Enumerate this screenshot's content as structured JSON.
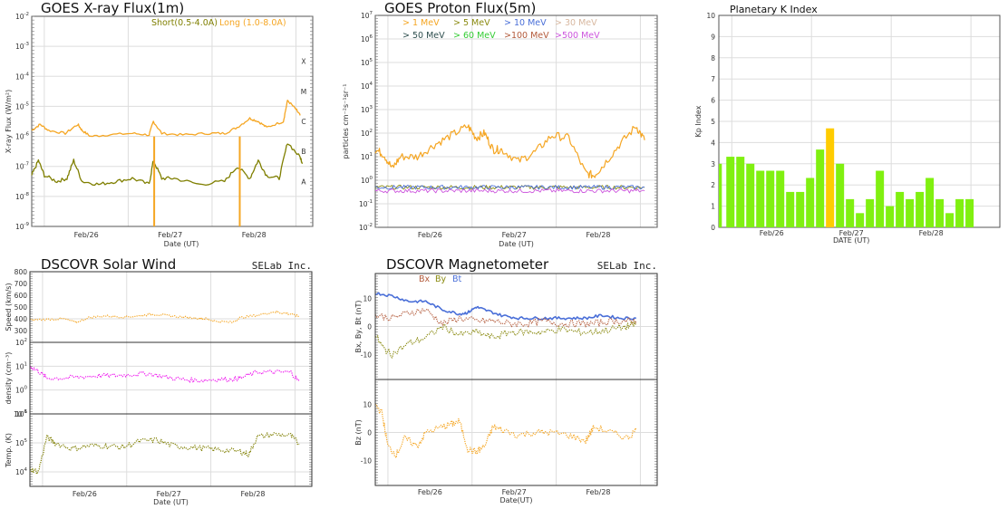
{
  "colors": {
    "orange": "#f5a623",
    "olive": "#7f7f00",
    "magenta": "#ee11ee",
    "blue": "#4a6fd8",
    "brown": "#b35a3a",
    "green_bar": "#80f010",
    "yellow_bar": "#ffcc00",
    "grid": "#dddddd"
  },
  "chart_data": [
    {
      "id": "xray",
      "type": "line",
      "title": "GOES X-ray Flux(1m)",
      "xlabel": "Date (UT)",
      "ylabel": "X-ray Flux (W/m²)",
      "yscale": "log",
      "ylim_exp": [
        -9,
        -2
      ],
      "ytick_labels": [
        "10-9",
        "10-8",
        "10-7",
        "10-6",
        "10-5",
        "10-4",
        "10-3",
        "10-2"
      ],
      "class_labels": [
        "A",
        "B",
        "C",
        "M",
        "X"
      ],
      "xtick_labels": [
        "Feb/26",
        "Feb/27",
        "Feb/28"
      ],
      "xlim_days": [
        0,
        3.35
      ],
      "legend": [
        {
          "name": "Short(0.5-4.0A)",
          "color": "#7f7f00"
        },
        {
          "name": "Long (1.0-8.0A)",
          "color": "#f5a623"
        }
      ],
      "series": [
        {
          "name": "Long (1.0-8.0A)",
          "color": "#f5a623",
          "x": [
            0,
            0.1,
            0.2,
            0.4,
            0.55,
            0.6,
            0.7,
            0.9,
            1.2,
            1.4,
            1.45,
            1.55,
            1.8,
            2.1,
            2.3,
            2.45,
            2.6,
            2.7,
            2.8,
            3.0,
            3.05,
            3.15,
            3.2
          ],
          "log_y": [
            -5.8,
            -5.6,
            -5.8,
            -5.9,
            -5.6,
            -5.8,
            -6.0,
            -5.95,
            -5.9,
            -5.95,
            -5.5,
            -5.9,
            -5.95,
            -5.9,
            -5.9,
            -5.7,
            -5.4,
            -5.5,
            -5.7,
            -5.5,
            -4.8,
            -5.1,
            -5.3
          ]
        },
        {
          "name": "Short(0.5-4.0A)",
          "color": "#7f7f00",
          "x": [
            0,
            0.08,
            0.15,
            0.3,
            0.42,
            0.5,
            0.6,
            0.8,
            1.0,
            1.2,
            1.4,
            1.45,
            1.55,
            1.7,
            2.0,
            2.3,
            2.45,
            2.6,
            2.7,
            2.8,
            2.95,
            3.05,
            3.2,
            3.23
          ],
          "log_y": [
            -7.3,
            -6.8,
            -7.3,
            -7.5,
            -7.4,
            -6.8,
            -7.5,
            -7.6,
            -7.5,
            -7.4,
            -7.6,
            -6.8,
            -7.4,
            -7.4,
            -7.6,
            -7.5,
            -7.0,
            -7.4,
            -6.8,
            -7.3,
            -7.4,
            -6.2,
            -6.7,
            -6.9
          ]
        }
      ],
      "dropouts_x": [
        1.46,
        2.48
      ]
    },
    {
      "id": "proton",
      "type": "line",
      "title": "GOES Proton Flux(5m)",
      "xlabel": "Date (UT)",
      "ylabel": "particles cm⁻²s⁻¹sr⁻¹",
      "yscale": "log",
      "ylim_exp": [
        -2,
        7
      ],
      "ytick_labels": [
        "10-2",
        "10-1",
        "100",
        "101",
        "102",
        "103",
        "104",
        "105",
        "106",
        "107"
      ],
      "xtick_labels": [
        "Feb/26",
        "Feb/27",
        "Feb/28"
      ],
      "xlim_days": [
        0,
        3.35
      ],
      "legend": [
        {
          "name": "> 1 MeV",
          "color": "#f5a623"
        },
        {
          "name": "> 5 MeV",
          "color": "#8a8a10"
        },
        {
          "name": "> 10 MeV",
          "color": "#4a6fd8"
        },
        {
          "name": "> 30 MeV",
          "color": "#d8b8a0"
        },
        {
          "name": "> 50 MeV",
          "color": "#2f4f4f"
        },
        {
          "name": "> 60 MeV",
          "color": "#33cc33"
        },
        {
          "name": ">100 MeV",
          "color": "#b35a3a"
        },
        {
          "name": ">500 MeV",
          "color": "#cc55dd"
        }
      ],
      "series": [
        {
          "name": "> 1 MeV",
          "color": "#f5a623",
          "x": [
            0,
            0.1,
            0.2,
            0.3,
            0.5,
            0.7,
            0.9,
            1.1,
            1.2,
            1.3,
            1.4,
            1.5,
            1.7,
            1.9,
            2.1,
            2.3,
            2.5,
            2.6,
            2.7,
            2.9,
            3.1,
            3.2
          ],
          "log_y": [
            1.3,
            1.1,
            0.5,
            1.0,
            1.0,
            1.5,
            1.9,
            2.3,
            1.8,
            2.0,
            1.3,
            1.3,
            0.8,
            1.2,
            1.9,
            1.8,
            0.3,
            0.2,
            0.6,
            1.5,
            2.3,
            1.7
          ]
        },
        {
          "name": "> 5 MeV",
          "color": "#8a8a10",
          "x": [
            0,
            3.2
          ],
          "log_y": [
            -0.3,
            -0.3
          ]
        },
        {
          "name": "> 10 MeV",
          "color": "#4a6fd8",
          "x": [
            0,
            3.2
          ],
          "log_y": [
            -0.3,
            -0.3
          ]
        },
        {
          "name": ">500 MeV",
          "color": "#cc55dd",
          "x": [
            0,
            3.2
          ],
          "log_y": [
            -0.45,
            -0.45
          ]
        }
      ]
    },
    {
      "id": "kp",
      "type": "bar",
      "title": "Planetary K Index",
      "xlabel": "DATE (UT)",
      "ylabel": "Kp Index",
      "ylim": [
        0,
        10
      ],
      "ytick_labels": [
        "0",
        "1",
        "2",
        "3",
        "4",
        "5",
        "6",
        "7",
        "8",
        "9",
        "10"
      ],
      "xtick_labels": [
        "Feb/26",
        "Feb/27",
        "Feb/28"
      ],
      "values": [
        3.0,
        3.33,
        3.33,
        3.0,
        2.67,
        2.67,
        2.67,
        1.67,
        1.67,
        2.33,
        3.67,
        4.67,
        3.0,
        1.33,
        0.67,
        1.33,
        2.67,
        1.0,
        1.67,
        1.33,
        1.67,
        2.33,
        1.33,
        0.67,
        1.33,
        1.33
      ],
      "highlight_threshold": 4
    },
    {
      "id": "solarwind",
      "type": "scatter",
      "title": "DSCOVR Solar Wind",
      "credit": "SELab Inc.",
      "xlabel": "Date (UT)",
      "xtick_labels": [
        "Feb/26",
        "Feb/27",
        "Feb/28"
      ],
      "panels": [
        {
          "ylabel": "Speed (km/s)",
          "yscale": "linear",
          "ylim": [
            200,
            800
          ],
          "ytick_labels": [
            "300",
            "400",
            "500",
            "600",
            "700",
            "800"
          ],
          "color": "#f5a623",
          "x": [
            0,
            0.2,
            0.4,
            0.55,
            0.7,
            0.9,
            1.1,
            1.3,
            1.45,
            1.6,
            1.8,
            2.0,
            2.1,
            2.2,
            2.4,
            2.5,
            2.7,
            2.9,
            3.0,
            3.1,
            3.2
          ],
          "y": [
            390,
            395,
            400,
            370,
            410,
            425,
            415,
            425,
            440,
            430,
            415,
            405,
            400,
            380,
            370,
            410,
            430,
            460,
            450,
            440,
            420
          ]
        },
        {
          "ylabel": "density (cm⁻³)",
          "yscale": "log",
          "ylim_exp": [
            -1,
            2
          ],
          "ytick_labels": [
            "10-1",
            "100",
            "101",
            "102"
          ],
          "color": "#ee11ee",
          "x": [
            0,
            0.1,
            0.2,
            0.4,
            0.6,
            0.8,
            1.0,
            1.2,
            1.4,
            1.6,
            1.8,
            2.0,
            2.2,
            2.4,
            2.5,
            2.7,
            2.9,
            3.1,
            3.2
          ],
          "log_y": [
            1.0,
            0.8,
            0.5,
            0.5,
            0.55,
            0.6,
            0.6,
            0.65,
            0.7,
            0.55,
            0.45,
            0.4,
            0.45,
            0.45,
            0.5,
            0.75,
            0.75,
            0.75,
            0.35
          ]
        },
        {
          "ylabel": "Temp. (K)",
          "yscale": "log",
          "ylim_exp": [
            3.5,
            6
          ],
          "ytick_labels": [
            "104",
            "105",
            "106"
          ],
          "color": "#7f7f00",
          "x": [
            0,
            0.1,
            0.2,
            0.3,
            0.5,
            0.7,
            0.9,
            1.1,
            1.3,
            1.5,
            1.7,
            1.9,
            2.1,
            2.3,
            2.5,
            2.6,
            2.7,
            2.9,
            3.1,
            3.2
          ],
          "log_y": [
            4.1,
            4.0,
            5.2,
            5.0,
            4.8,
            4.9,
            4.9,
            4.85,
            5.05,
            5.1,
            4.9,
            4.85,
            4.8,
            4.75,
            4.7,
            4.6,
            5.2,
            5.3,
            5.25,
            4.95
          ]
        }
      ]
    },
    {
      "id": "mag",
      "type": "scatter",
      "title": "DSCOVR Magnetometer",
      "credit": "SELab Inc.",
      "xlabel": "Date(UT)",
      "xtick_labels": [
        "Feb/26",
        "Feb/27",
        "Feb/28"
      ],
      "legend": [
        {
          "name": "Bx",
          "color": "#b35a3a"
        },
        {
          "name": "By",
          "color": "#8a8a10"
        },
        {
          "name": "Bt",
          "color": "#4a6fd8"
        }
      ],
      "panels": [
        {
          "ylabel": "Bx, By, Bt (nT)",
          "ylim": [
            -19,
            19
          ],
          "ytick_labels": [
            "-10",
            "0",
            "10"
          ],
          "series": [
            {
              "name": "Bt",
              "color": "#4a6fd8",
              "x": [
                0,
                0.2,
                0.4,
                0.6,
                0.8,
                1.0,
                1.1,
                1.2,
                1.3,
                1.5,
                1.7,
                1.9,
                2.1,
                2.3,
                2.5,
                2.7,
                2.9,
                3.1
              ],
              "y": [
                12,
                11,
                9,
                9,
                6,
                4.5,
                5,
                7,
                6,
                4,
                3,
                3,
                3,
                3,
                3,
                4,
                3,
                3
              ]
            },
            {
              "name": "Bx",
              "color": "#b35a3a",
              "x": [
                0,
                0.2,
                0.4,
                0.6,
                0.8,
                1.0,
                1.2,
                1.4,
                1.6,
                1.8,
                2.0,
                2.2,
                2.4,
                2.6,
                2.8,
                3.0,
                3.1
              ],
              "y": [
                4,
                3,
                5,
                6,
                1,
                3,
                2,
                2,
                1,
                1,
                2,
                1,
                1,
                1,
                2,
                2,
                2
              ]
            },
            {
              "name": "By",
              "color": "#8a8a10",
              "x": [
                0,
                0.1,
                0.2,
                0.4,
                0.6,
                0.8,
                1.0,
                1.2,
                1.4,
                1.6,
                1.8,
                2.0,
                2.2,
                2.4,
                2.6,
                2.8,
                3.0,
                3.1
              ],
              "y": [
                -3,
                -8,
                -10,
                -6,
                -4,
                0,
                -3,
                -2,
                -4,
                -2,
                -2,
                -2,
                -1,
                -2,
                -2,
                -1,
                0,
                1
              ]
            }
          ]
        },
        {
          "ylabel": "Bz (nT)",
          "ylim": [
            -19,
            19
          ],
          "ytick_labels": [
            "-10",
            "0",
            "10"
          ],
          "series": [
            {
              "name": "Bz",
              "color": "#f5a623",
              "x": [
                0,
                0.08,
                0.15,
                0.25,
                0.35,
                0.5,
                0.6,
                0.8,
                0.9,
                1.0,
                1.1,
                1.2,
                1.3,
                1.4,
                1.5,
                1.7,
                1.9,
                2.1,
                2.3,
                2.5,
                2.6,
                2.8,
                3.0,
                3.1
              ],
              "y": [
                10,
                7,
                -5,
                -8,
                -2,
                -5,
                0,
                2,
                3,
                4,
                -6,
                -7,
                -5,
                2,
                1,
                -1,
                0,
                0,
                -1,
                -3,
                2,
                0,
                -2,
                1
              ]
            }
          ]
        }
      ]
    }
  ]
}
